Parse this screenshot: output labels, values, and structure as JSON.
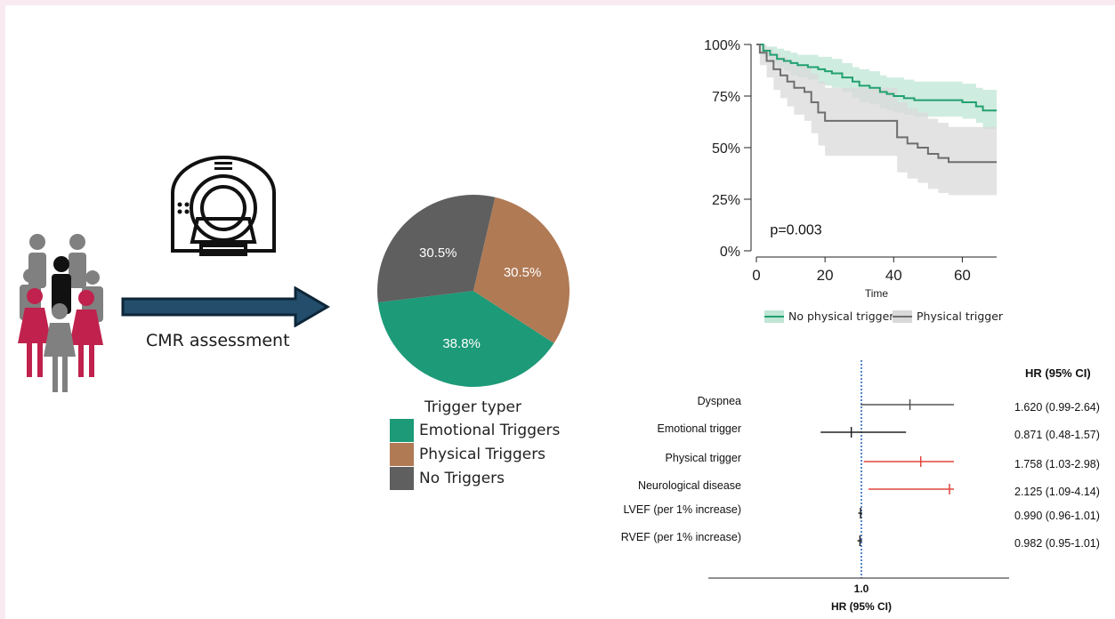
{
  "flow": {
    "cmr_label": "CMR assessment"
  },
  "colors": {
    "emotional": "#1d9a78",
    "physical": "#b07a55",
    "none": "#5f5f5f",
    "arrow": "#234d6b",
    "arrow_edge": "#0d2638",
    "km_no_physical": "#22a070",
    "km_no_physical_band": "#bfe6d6",
    "km_physical": "#6e6e6e",
    "km_physical_band": "#d9d9d9",
    "fp_gray": "#555555",
    "fp_red": "#e0463c",
    "fp_black": "#222222",
    "fp_ref": "#1f5fb4",
    "people_red": "#c0224d",
    "people_gray": "#808080",
    "people_black": "#111111"
  },
  "chart_data": [
    {
      "type": "pie",
      "slices": [
        {
          "name": "Emotional Triggers",
          "value": 38.8,
          "label": "38.8%"
        },
        {
          "name": "Physical Triggers",
          "value": 30.5,
          "label": "30.5%"
        },
        {
          "name": "No Triggers",
          "value": 30.5,
          "label": "30.5%"
        }
      ],
      "legend_title": "Trigger typer",
      "legend_placement": "bottom"
    },
    {
      "type": "line",
      "xlabel": "Time",
      "xlim": [
        0,
        70
      ],
      "ylim": [
        0,
        100
      ],
      "x_ticks": [
        0,
        20,
        40,
        60
      ],
      "y_ticks": [
        "0%",
        "25%",
        "50%",
        "75%",
        "100%"
      ],
      "annotation": "p=0.003",
      "legend_placement": "bottom",
      "series": [
        {
          "name": "No physical trigger",
          "x": [
            0,
            2,
            4,
            6,
            8,
            10,
            12,
            15,
            18,
            20,
            22,
            25,
            28,
            30,
            33,
            36,
            38,
            40,
            43,
            46,
            50,
            55,
            60,
            64,
            66,
            70
          ],
          "y": [
            100,
            97,
            95,
            93,
            92,
            91,
            90,
            89,
            88,
            87,
            86,
            84,
            82,
            80,
            79,
            77,
            76,
            75,
            74,
            73,
            73,
            73,
            72,
            70,
            68,
            68
          ],
          "lower": [
            100,
            94,
            91,
            89,
            87,
            85,
            84,
            83,
            81,
            80,
            79,
            77,
            74,
            72,
            71,
            69,
            68,
            67,
            66,
            65,
            65,
            65,
            64,
            62,
            59,
            59
          ],
          "upper": [
            100,
            99,
            99,
            98,
            97,
            96,
            95,
            95,
            94,
            94,
            93,
            91,
            89,
            88,
            87,
            85,
            84,
            84,
            83,
            82,
            82,
            82,
            81,
            79,
            78,
            78
          ]
        },
        {
          "name": "Physical trigger",
          "x": [
            0,
            1,
            3,
            5,
            7,
            9,
            11,
            14,
            16,
            18,
            20,
            25,
            30,
            40,
            41,
            44,
            47,
            50,
            53,
            56,
            60,
            70
          ],
          "y": [
            100,
            96,
            92,
            88,
            85,
            82,
            79,
            77,
            72,
            67,
            63,
            63,
            63,
            63,
            55,
            52,
            50,
            47,
            45,
            43,
            43,
            43
          ],
          "lower": [
            100,
            90,
            84,
            78,
            74,
            70,
            66,
            63,
            57,
            51,
            46,
            46,
            46,
            46,
            38,
            35,
            33,
            30,
            28,
            27,
            27,
            27
          ],
          "upper": [
            100,
            100,
            98,
            96,
            94,
            92,
            90,
            89,
            86,
            82,
            79,
            79,
            79,
            79,
            72,
            69,
            67,
            64,
            62,
            60,
            60,
            60
          ]
        }
      ]
    },
    {
      "type": "forest",
      "reference": 1.0,
      "reference_label": "1.0",
      "xlabel": "HR (95% CI)",
      "column_header": "HR (95% CI)",
      "rows": [
        {
          "label": "Dyspnea",
          "hr": 1.62,
          "lo": 0.99,
          "hi": 2.64,
          "text": "1.620 (0.99-2.64)",
          "color": "gray"
        },
        {
          "label": "Emotional trigger",
          "hr": 0.871,
          "lo": 0.48,
          "hi": 1.57,
          "text": "0.871 (0.48-1.57)",
          "color": "black"
        },
        {
          "label": "Physical trigger",
          "hr": 1.758,
          "lo": 1.03,
          "hi": 2.98,
          "text": "1.758 (1.03-2.98)",
          "color": "red"
        },
        {
          "label": "Neurological disease",
          "hr": 2.125,
          "lo": 1.09,
          "hi": 4.14,
          "text": "2.125 (1.09-4.14)",
          "color": "red"
        },
        {
          "label": "LVEF (per 1% increase)",
          "hr": 0.99,
          "lo": 0.96,
          "hi": 1.01,
          "text": "0.990 (0.96-1.01)",
          "color": "black"
        },
        {
          "label": "RVEF (per 1% increase)",
          "hr": 0.982,
          "lo": 0.95,
          "hi": 1.01,
          "text": "0.982 (0.95-1.01)",
          "color": "black"
        }
      ]
    }
  ]
}
